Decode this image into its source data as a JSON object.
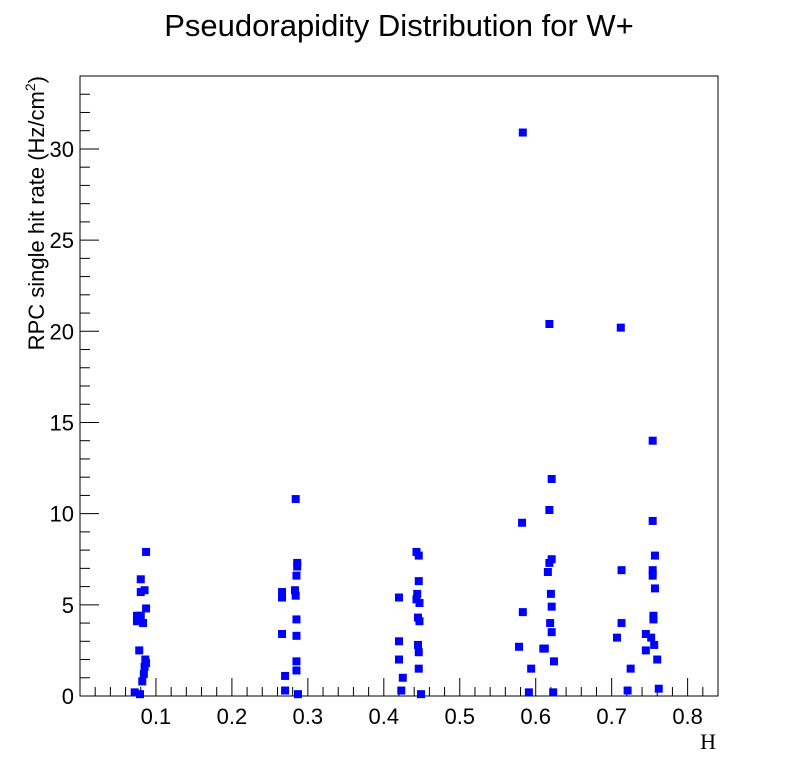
{
  "chart_data": {
    "type": "scatter",
    "title": "Pseudorapidity Distribution for W+",
    "xlabel": "H",
    "ylabel": "RPC single hit rate (Hz/cm",
    "ylabel_sup": "2",
    "ylabel_end": ")",
    "xlim": [
      0.0,
      0.84
    ],
    "ylim": [
      0,
      34
    ],
    "x_ticks": [
      0.1,
      0.2,
      0.3,
      0.4,
      0.5,
      0.6,
      0.7,
      0.8
    ],
    "x_tick_labels": [
      "0.1",
      "0.2",
      "0.3",
      "0.4",
      "0.5",
      "0.6",
      "0.7",
      "0.8"
    ],
    "y_ticks": [
      0,
      5,
      10,
      15,
      20,
      25,
      30
    ],
    "y_tick_labels": [
      "0",
      "5",
      "10",
      "15",
      "20",
      "25",
      "30"
    ],
    "grid": false,
    "marker_color": "#0000ff",
    "series": [
      {
        "points": [
          [
            0.072,
            0.2
          ],
          [
            0.075,
            4.1
          ],
          [
            0.075,
            4.4
          ],
          [
            0.078,
            4.3
          ],
          [
            0.08,
            4.4
          ],
          [
            0.078,
            2.5
          ],
          [
            0.08,
            6.4
          ],
          [
            0.08,
            5.7
          ],
          [
            0.079,
            0.1
          ],
          [
            0.082,
            0.8
          ],
          [
            0.083,
            4.0
          ],
          [
            0.084,
            1.2
          ],
          [
            0.085,
            5.8
          ],
          [
            0.085,
            1.6
          ],
          [
            0.086,
            2.0
          ],
          [
            0.087,
            7.9
          ],
          [
            0.087,
            4.8
          ],
          [
            0.087,
            1.8
          ],
          [
            0.266,
            5.4
          ],
          [
            0.266,
            5.7
          ],
          [
            0.266,
            3.4
          ],
          [
            0.27,
            1.1
          ],
          [
            0.27,
            0.3
          ],
          [
            0.283,
            5.8
          ],
          [
            0.284,
            10.8
          ],
          [
            0.284,
            5.5
          ],
          [
            0.285,
            4.2
          ],
          [
            0.285,
            3.3
          ],
          [
            0.285,
            1.9
          ],
          [
            0.285,
            1.4
          ],
          [
            0.285,
            6.6
          ],
          [
            0.286,
            7.3
          ],
          [
            0.286,
            7.1
          ],
          [
            0.287,
            0.1
          ],
          [
            0.42,
            5.4
          ],
          [
            0.42,
            3.0
          ],
          [
            0.42,
            2.0
          ],
          [
            0.423,
            0.3
          ],
          [
            0.425,
            1.0
          ],
          [
            0.443,
            7.9
          ],
          [
            0.443,
            5.3
          ],
          [
            0.444,
            5.6
          ],
          [
            0.445,
            4.3
          ],
          [
            0.445,
            2.8
          ],
          [
            0.446,
            2.4
          ],
          [
            0.446,
            1.5
          ],
          [
            0.446,
            7.7
          ],
          [
            0.446,
            6.3
          ],
          [
            0.447,
            5.1
          ],
          [
            0.447,
            4.1
          ],
          [
            0.449,
            0.1
          ],
          [
            0.578,
            2.7
          ],
          [
            0.582,
            9.5
          ],
          [
            0.583,
            30.9
          ],
          [
            0.583,
            4.6
          ],
          [
            0.591,
            0.2
          ],
          [
            0.594,
            1.5
          ],
          [
            0.61,
            2.6
          ],
          [
            0.612,
            2.6
          ],
          [
            0.616,
            6.8
          ],
          [
            0.618,
            20.4
          ],
          [
            0.618,
            10.2
          ],
          [
            0.618,
            7.3
          ],
          [
            0.619,
            4.0
          ],
          [
            0.62,
            5.6
          ],
          [
            0.621,
            11.9
          ],
          [
            0.621,
            7.5
          ],
          [
            0.621,
            4.9
          ],
          [
            0.621,
            3.5
          ],
          [
            0.623,
            0.2
          ],
          [
            0.624,
            1.9
          ],
          [
            0.707,
            3.2
          ],
          [
            0.712,
            20.2
          ],
          [
            0.713,
            6.9
          ],
          [
            0.713,
            4.0
          ],
          [
            0.721,
            0.3
          ],
          [
            0.725,
            1.5
          ],
          [
            0.745,
            3.4
          ],
          [
            0.745,
            2.5
          ],
          [
            0.752,
            3.2
          ],
          [
            0.754,
            14.0
          ],
          [
            0.754,
            9.6
          ],
          [
            0.754,
            6.9
          ],
          [
            0.754,
            6.6
          ],
          [
            0.755,
            4.4
          ],
          [
            0.755,
            4.2
          ],
          [
            0.756,
            2.8
          ],
          [
            0.757,
            7.7
          ],
          [
            0.757,
            5.9
          ],
          [
            0.76,
            2.0
          ],
          [
            0.762,
            0.4
          ]
        ]
      }
    ]
  }
}
